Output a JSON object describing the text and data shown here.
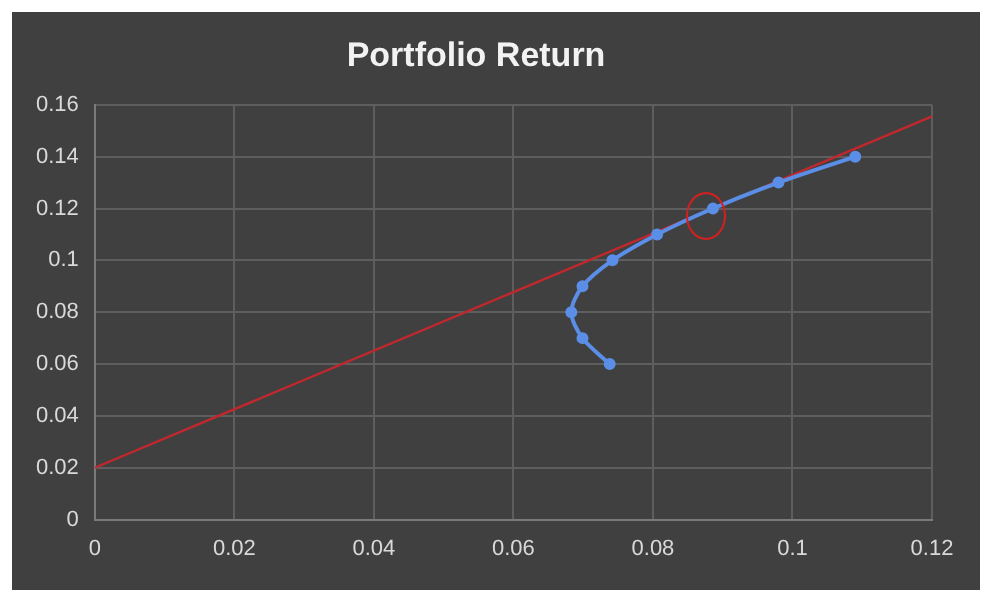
{
  "chart_data": {
    "type": "line",
    "title": "Portfolio Return",
    "xlim": [
      0,
      0.12
    ],
    "xticks": [
      0,
      0.02,
      0.04,
      0.06,
      0.08,
      0.1,
      0.12
    ],
    "ylim": [
      0,
      0.16
    ],
    "yticks": [
      0,
      0.02,
      0.04,
      0.06,
      0.08,
      0.1,
      0.12,
      0.14,
      0.16
    ],
    "grid": true,
    "legend": false,
    "series": [
      {
        "color": "#5b8ee6",
        "marker": "circle",
        "x": [
          0.0738,
          0.0699,
          0.0683,
          0.0699,
          0.0742,
          0.0806,
          0.0886,
          0.098,
          0.109
        ],
        "values": [
          0.06,
          0.07,
          0.08,
          0.09,
          0.1,
          0.11,
          0.12,
          0.13,
          0.14
        ]
      },
      {
        "color": "#c0282e",
        "marker": "none",
        "x": [
          0,
          0.12
        ],
        "values": [
          0.02,
          0.1555
        ]
      }
    ]
  }
}
